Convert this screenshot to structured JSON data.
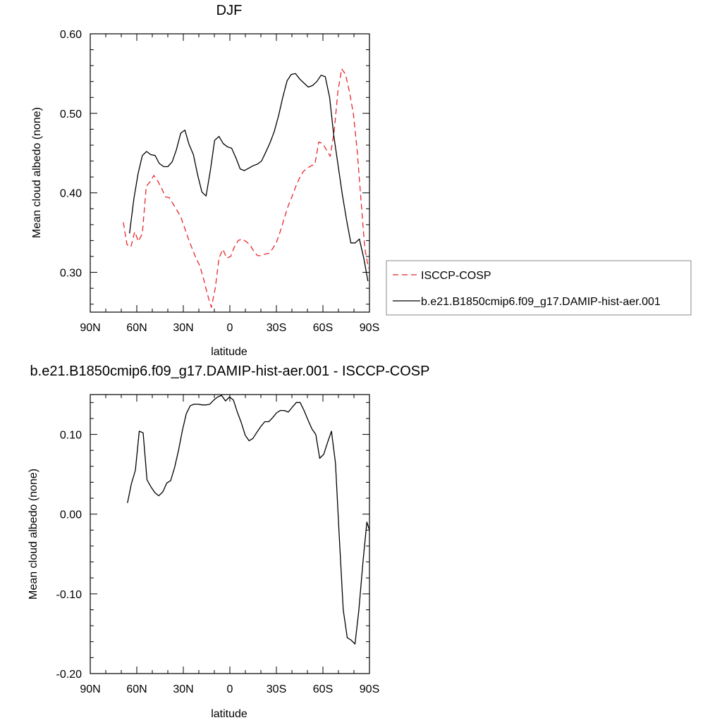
{
  "chart_data": [
    {
      "type": "line",
      "title": "DJF",
      "xlabel": "latitude",
      "ylabel": "Mean cloud albedo (none)",
      "xlim": [
        90,
        -90
      ],
      "ylim": [
        0.25,
        0.6
      ],
      "x_ticks": [
        {
          "value": 90,
          "label": "90N"
        },
        {
          "value": 60,
          "label": "60N"
        },
        {
          "value": 30,
          "label": "30N"
        },
        {
          "value": 0,
          "label": "0"
        },
        {
          "value": -30,
          "label": "30S"
        },
        {
          "value": -60,
          "label": "60S"
        },
        {
          "value": -90,
          "label": "90S"
        }
      ],
      "y_ticks": [
        {
          "value": 0.3,
          "label": "0.30"
        },
        {
          "value": 0.4,
          "label": "0.40"
        },
        {
          "value": 0.5,
          "label": "0.50"
        },
        {
          "value": 0.6,
          "label": "0.60"
        }
      ],
      "legend_position": "right",
      "series": [
        {
          "name": "ISCCP-COSP",
          "color": "#e8262a",
          "dash": "dashed",
          "x": [
            68.7,
            66.3,
            63.8,
            61.3,
            58.9,
            56.4,
            53.9,
            51.4,
            49.0,
            46.5,
            44.0,
            41.6,
            39.1,
            36.6,
            34.1,
            31.7,
            29.2,
            26.7,
            24.3,
            21.8,
            19.3,
            16.8,
            14.4,
            11.9,
            9.4,
            7.0,
            4.5,
            2.0,
            -0.5,
            -2.9,
            -5.4,
            -7.9,
            -10.3,
            -12.8,
            -15.3,
            -17.8,
            -20.2,
            -22.7,
            -25.2,
            -27.7,
            -30.1,
            -32.6,
            -35.1,
            -37.5,
            -40.0,
            -42.5,
            -45.0,
            -47.4,
            -49.9,
            -52.4,
            -54.8,
            -57.3,
            -59.8,
            -62.3,
            -64.7,
            -67.2,
            -69.7,
            -72.1,
            -74.6,
            -77.1,
            -79.6,
            -82.0,
            -84.5,
            -87.0,
            -89.4
          ],
          "values": [
            0.363,
            0.335,
            0.332,
            0.351,
            0.339,
            0.349,
            0.408,
            0.414,
            0.422,
            0.415,
            0.406,
            0.395,
            0.394,
            0.386,
            0.378,
            0.37,
            0.356,
            0.342,
            0.33,
            0.318,
            0.308,
            0.291,
            0.272,
            0.256,
            0.28,
            0.318,
            0.329,
            0.318,
            0.32,
            0.332,
            0.34,
            0.342,
            0.339,
            0.335,
            0.327,
            0.321,
            0.321,
            0.323,
            0.324,
            0.33,
            0.338,
            0.352,
            0.368,
            0.383,
            0.395,
            0.408,
            0.419,
            0.427,
            0.431,
            0.434,
            0.436,
            0.464,
            0.462,
            0.454,
            0.446,
            0.476,
            0.528,
            0.556,
            0.549,
            0.527,
            0.5,
            0.455,
            0.392,
            0.33,
            0.305
          ]
        },
        {
          "name": "b.e21.B1850cmip6.f09_g17.DAMIP-hist-aer.001",
          "color": "#000000",
          "dash": "solid",
          "x": [
            64.7,
            61.9,
            59.2,
            56.4,
            53.7,
            51.0,
            48.2,
            45.5,
            42.7,
            40.0,
            37.2,
            34.5,
            31.7,
            29.0,
            26.3,
            23.5,
            20.8,
            18.0,
            15.3,
            12.5,
            9.8,
            7.0,
            4.3,
            1.6,
            -1.2,
            -3.9,
            -6.7,
            -9.4,
            -12.2,
            -14.9,
            -17.6,
            -20.4,
            -23.1,
            -25.9,
            -28.6,
            -31.4,
            -34.1,
            -36.9,
            -39.6,
            -42.3,
            -45.1,
            -47.8,
            -50.6,
            -53.3,
            -56.1,
            -58.8,
            -61.5,
            -64.3,
            -67.0,
            -69.8,
            -72.5,
            -75.3,
            -78.0,
            -80.8,
            -83.5,
            -86.3,
            -89.0
          ],
          "values": [
            0.349,
            0.392,
            0.424,
            0.447,
            0.452,
            0.448,
            0.447,
            0.437,
            0.433,
            0.433,
            0.439,
            0.454,
            0.475,
            0.479,
            0.461,
            0.448,
            0.423,
            0.401,
            0.396,
            0.429,
            0.466,
            0.471,
            0.462,
            0.458,
            0.456,
            0.444,
            0.43,
            0.428,
            0.431,
            0.434,
            0.436,
            0.44,
            0.451,
            0.463,
            0.477,
            0.497,
            0.52,
            0.541,
            0.549,
            0.55,
            0.543,
            0.538,
            0.533,
            0.535,
            0.54,
            0.548,
            0.546,
            0.52,
            0.472,
            0.434,
            0.398,
            0.365,
            0.337,
            0.337,
            0.342,
            0.318,
            0.289
          ]
        }
      ]
    },
    {
      "type": "line",
      "title": "b.e21.B1850cmip6.f09_g17.DAMIP-hist-aer.001 - ISCCP-COSP",
      "xlabel": "latitude",
      "ylabel": "Mean cloud albedo (none)",
      "xlim": [
        90,
        -90
      ],
      "ylim": [
        -0.2,
        0.15
      ],
      "x_ticks": [
        {
          "value": 90,
          "label": "90N"
        },
        {
          "value": 60,
          "label": "60N"
        },
        {
          "value": 30,
          "label": "30N"
        },
        {
          "value": 0,
          "label": "0"
        },
        {
          "value": -30,
          "label": "30S"
        },
        {
          "value": -60,
          "label": "60S"
        },
        {
          "value": -90,
          "label": "90S"
        }
      ],
      "y_ticks": [
        {
          "value": -0.2,
          "label": "-0.20"
        },
        {
          "value": -0.1,
          "label": "-0.10"
        },
        {
          "value": 0.0,
          "label": "0.00"
        },
        {
          "value": 0.1,
          "label": "0.10"
        }
      ],
      "series": [
        {
          "color": "#000000",
          "dash": "solid",
          "x": [
            66.0,
            63.5,
            60.9,
            58.4,
            55.9,
            53.4,
            50.8,
            48.3,
            45.8,
            43.2,
            40.7,
            38.2,
            35.7,
            33.1,
            30.6,
            28.1,
            25.5,
            23.0,
            20.5,
            17.9,
            15.4,
            12.9,
            10.4,
            7.8,
            5.3,
            2.8,
            0.2,
            -2.3,
            -4.8,
            -7.3,
            -9.9,
            -12.4,
            -14.9,
            -17.5,
            -20.0,
            -22.5,
            -25.1,
            -27.6,
            -30.1,
            -32.6,
            -35.2,
            -37.7,
            -40.2,
            -42.8,
            -45.3,
            -47.8,
            -50.4,
            -52.9,
            -55.4,
            -57.9,
            -60.5,
            -63.0,
            -65.5,
            -68.1,
            -70.6,
            -73.1,
            -75.7,
            -78.2,
            -80.7,
            -83.2,
            -85.8,
            -88.3,
            -90.0
          ],
          "values": [
            0.014,
            0.038,
            0.055,
            0.104,
            0.102,
            0.043,
            0.034,
            0.027,
            0.023,
            0.028,
            0.039,
            0.042,
            0.058,
            0.08,
            0.105,
            0.126,
            0.136,
            0.138,
            0.138,
            0.137,
            0.137,
            0.138,
            0.143,
            0.147,
            0.149,
            0.142,
            0.147,
            0.143,
            0.128,
            0.115,
            0.099,
            0.092,
            0.095,
            0.103,
            0.11,
            0.116,
            0.116,
            0.121,
            0.127,
            0.13,
            0.13,
            0.128,
            0.134,
            0.14,
            0.14,
            0.13,
            0.118,
            0.107,
            0.1,
            0.07,
            0.075,
            0.09,
            0.104,
            0.064,
            -0.03,
            -0.12,
            -0.155,
            -0.158,
            -0.163,
            -0.12,
            -0.06,
            -0.01,
            -0.02
          ]
        }
      ]
    }
  ]
}
